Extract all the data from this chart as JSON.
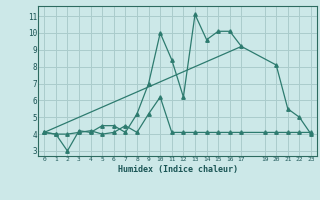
{
  "xlabel": "Humidex (Indice chaleur)",
  "bg_color": "#cce8e8",
  "grid_color": "#aacccc",
  "line_color": "#2d7b6f",
  "xlim": [
    -0.5,
    23.5
  ],
  "ylim": [
    2.7,
    11.6
  ],
  "xticks": [
    0,
    1,
    2,
    3,
    4,
    5,
    6,
    7,
    8,
    9,
    10,
    11,
    12,
    13,
    14,
    15,
    16,
    17,
    19,
    20,
    21,
    22,
    23
  ],
  "xtick_labels": [
    "0",
    "1",
    "2",
    "3",
    "4",
    "5",
    "6",
    "7",
    "8",
    "9",
    "10",
    "11",
    "12",
    "13",
    "14",
    "15",
    "16",
    "17",
    "19",
    "20",
    "21",
    "22",
    "23"
  ],
  "yticks": [
    3,
    4,
    5,
    6,
    7,
    8,
    9,
    10,
    11
  ],
  "series1_x": [
    0,
    1,
    2,
    3,
    4,
    5,
    6,
    7,
    8,
    9,
    10,
    11,
    12,
    13,
    14,
    15,
    16,
    17,
    20,
    21,
    22,
    23
  ],
  "series1_y": [
    4.1,
    4.0,
    3.0,
    4.2,
    4.1,
    4.5,
    4.5,
    4.1,
    5.2,
    7.0,
    10.0,
    8.4,
    6.2,
    11.1,
    9.6,
    10.1,
    10.1,
    9.2,
    8.1,
    5.5,
    5.0,
    4.0
  ],
  "series2_x": [
    0,
    1,
    2,
    3,
    4,
    5,
    6,
    7,
    8,
    9,
    10,
    11,
    12,
    13,
    14,
    15,
    16,
    17,
    19,
    20,
    21,
    22,
    23
  ],
  "series2_y": [
    4.1,
    4.0,
    4.0,
    4.1,
    4.2,
    4.0,
    4.1,
    4.5,
    4.1,
    5.2,
    6.2,
    4.1,
    4.1,
    4.1,
    4.1,
    4.1,
    4.1,
    4.1,
    4.1,
    4.1,
    4.1,
    4.1,
    4.1
  ],
  "series3_x": [
    0,
    17
  ],
  "series3_y": [
    4.1,
    9.2
  ]
}
